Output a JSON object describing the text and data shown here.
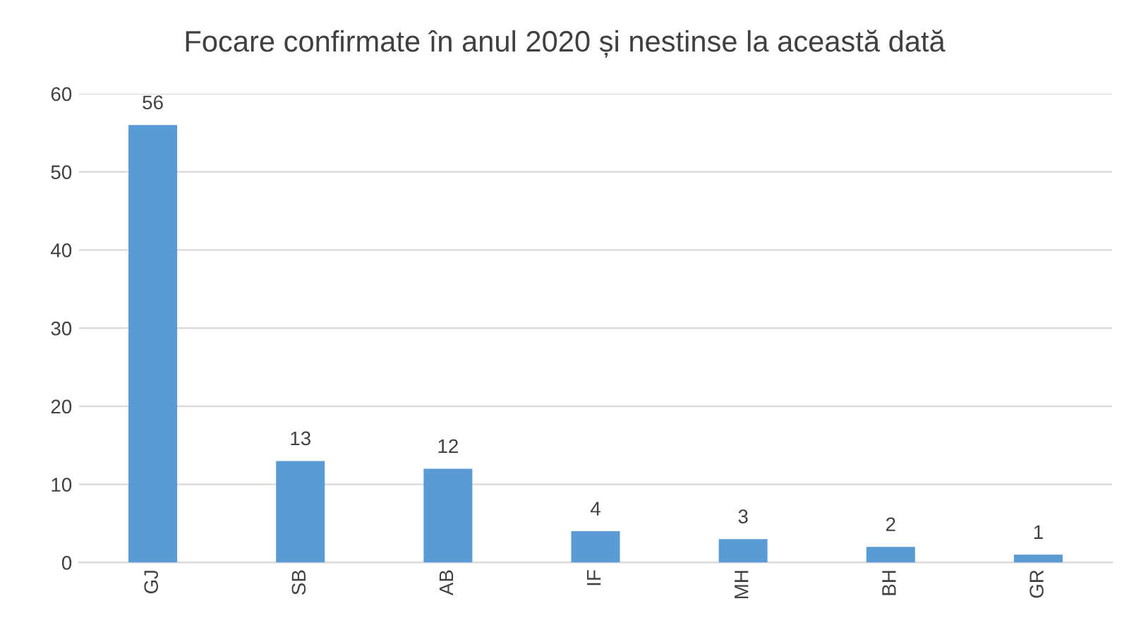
{
  "chart_data": {
    "type": "bar",
    "title": "Focare confirmate în anul 2020 și nestinse la această dată",
    "categories": [
      "GJ",
      "SB",
      "AB",
      "IF",
      "MH",
      "BH",
      "GR"
    ],
    "values": [
      56,
      13,
      12,
      4,
      3,
      2,
      1
    ],
    "color": "#5b9bd5",
    "ylim": [
      0,
      60
    ],
    "yticks": [
      0,
      10,
      20,
      30,
      40,
      50,
      60
    ],
    "grid": "y",
    "data_labels": true
  }
}
